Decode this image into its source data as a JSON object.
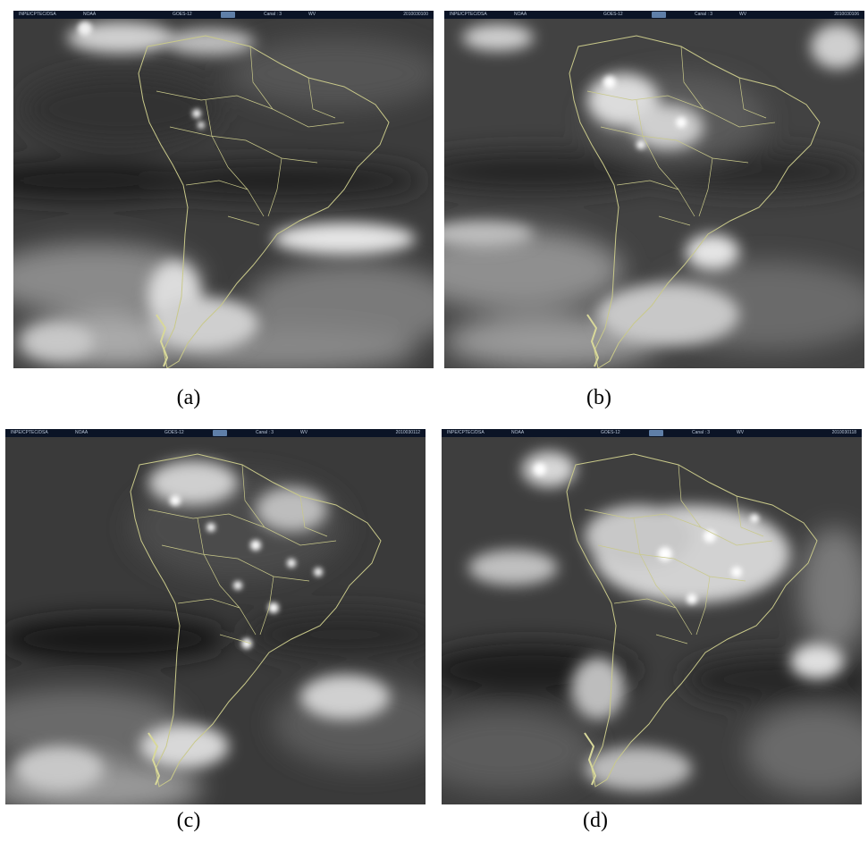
{
  "panels": [
    {
      "id": "a",
      "caption": "(a)",
      "header": {
        "org": "INPE/CPTEC/DSA",
        "agency": "NOAA",
        "satellite": "GOES-12",
        "channel": "Canal : 3",
        "band": "WV",
        "timestamp": "2010030100"
      }
    },
    {
      "id": "b",
      "caption": "(b)",
      "header": {
        "org": "INPE/CPTEC/DSA",
        "agency": "NOAA",
        "satellite": "GOES-12",
        "channel": "Canal : 3",
        "band": "WV",
        "timestamp": "2010030106"
      }
    },
    {
      "id": "c",
      "caption": "(c)",
      "header": {
        "org": "INPE/CPTEC/DSA",
        "agency": "NOAA",
        "satellite": "GOES-12",
        "channel": "Canal : 3",
        "band": "WV",
        "timestamp": "2010030112"
      }
    },
    {
      "id": "d",
      "caption": "(d)",
      "header": {
        "org": "INPE/CPTEC/DSA",
        "agency": "NOAA",
        "satellite": "GOES-12",
        "channel": "Canal : 3",
        "band": "WV",
        "timestamp": "2010030118"
      }
    }
  ],
  "colors": {
    "background_dark": "#3c3c3c",
    "dry_band": "#1e1e1e",
    "moist_cloud": "#cfcfcf",
    "bright_cloud": "#f4f4f4",
    "coastline": "#c9c98a",
    "header_bar": "#0b1426"
  }
}
